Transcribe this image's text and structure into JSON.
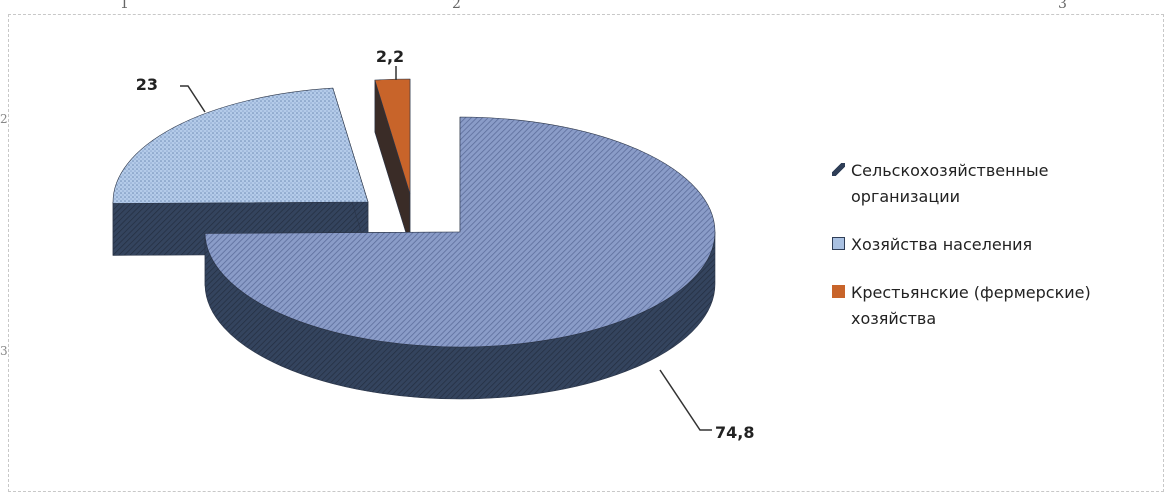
{
  "chart_data": {
    "type": "pie",
    "title": "",
    "slices": [
      {
        "name": "Сельскохозяйственные организации",
        "value": 74.8,
        "label": "74,8",
        "color": "#8fa0c8",
        "side_color": "#2f3e57"
      },
      {
        "name": "Хозяйства населения",
        "value": 23,
        "label": "23",
        "color": "#a9c1e2",
        "side_color": "#2f3e57"
      },
      {
        "name": "Крестьянские (фермерские) хозяйства",
        "value": 2.2,
        "label": "2,2",
        "color": "#c8642a",
        "side_color": "#2f3e57"
      }
    ],
    "legend": {
      "position": "right",
      "items": [
        {
          "label": "Сельскохозяйственные организации",
          "color": "#2f3e57"
        },
        {
          "label": "Хозяйства населения",
          "color": "#a9c1e2"
        },
        {
          "label": "Крестьянские (фермерские) хозяйства",
          "color": "#c8642a"
        }
      ]
    }
  },
  "cut_text": {
    "top_left": "1",
    "top_mid": "2",
    "top_right": "3",
    "side_top": "2.",
    "side_bottom": "3."
  }
}
